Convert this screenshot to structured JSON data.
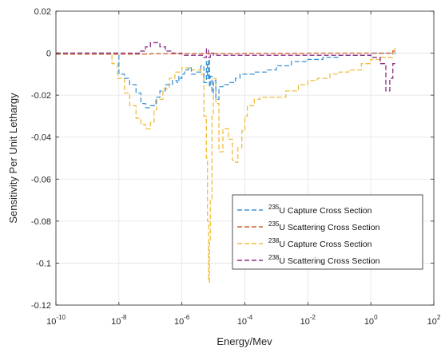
{
  "chart_data": {
    "type": "line",
    "title": "",
    "xlabel": "Energy/Mev",
    "ylabel": "Sensitivity Per Unit Lethargy",
    "xscale": "log",
    "xlim": [
      1e-10,
      100
    ],
    "ylim": [
      -0.12,
      0.02
    ],
    "grid": true,
    "legend_position": "lower-right",
    "x_ticks": [
      {
        "exp": "-10",
        "value": 1e-10
      },
      {
        "exp": "-8",
        "value": 1e-08
      },
      {
        "exp": "-6",
        "value": 1e-06
      },
      {
        "exp": "-4",
        "value": 0.0001
      },
      {
        "exp": "-2",
        "value": 0.01
      },
      {
        "exp": "0",
        "value": 1
      },
      {
        "exp": "2",
        "value": 100
      }
    ],
    "y_ticks": [
      {
        "label": "0.02",
        "value": 0.02
      },
      {
        "label": "0",
        "value": 0
      },
      {
        "label": "-0.02",
        "value": -0.02
      },
      {
        "label": "-0.04",
        "value": -0.04
      },
      {
        "label": "-0.06",
        "value": -0.06
      },
      {
        "label": "-0.08",
        "value": -0.08
      },
      {
        "label": "-0.1",
        "value": -0.1
      },
      {
        "label": "-0.12",
        "value": -0.12
      }
    ],
    "series": [
      {
        "sup": "235",
        "name_rest": "U Capture Cross Section",
        "color": "#3d93d6",
        "x": [
          1e-10,
          1e-08,
          1.5e-08,
          2.2e-08,
          3.5e-08,
          5e-08,
          7e-08,
          1e-07,
          1.5e-07,
          2e-07,
          3e-07,
          5e-07,
          7e-07,
          8e-07,
          9e-07,
          1e-06,
          1.2e-06,
          1.6e-06,
          2e-06,
          3e-06,
          4e-06,
          5e-06,
          6e-06,
          6.5e-06,
          7e-06,
          7.5e-06,
          8e-06,
          9e-06,
          1e-05,
          1.2e-05,
          1.5e-05,
          2e-05,
          3e-05,
          5e-05,
          7e-05,
          0.0001,
          0.0002,
          0.0005,
          0.001,
          0.003,
          0.01,
          0.03,
          0.1,
          0.3,
          1,
          2,
          5
        ],
        "y": [
          0,
          -0.01,
          -0.012,
          -0.015,
          -0.019,
          -0.024,
          -0.026,
          -0.025,
          -0.021,
          -0.018,
          -0.015,
          -0.013,
          -0.014,
          -0.011,
          -0.012,
          -0.01,
          -0.008,
          -0.007,
          -0.01,
          -0.009,
          -0.006,
          -0.014,
          -0.004,
          -0.012,
          -0.003,
          -0.016,
          -0.011,
          -0.019,
          -0.013,
          -0.022,
          -0.016,
          -0.015,
          -0.014,
          -0.012,
          -0.01,
          -0.01,
          -0.009,
          -0.008,
          -0.006,
          -0.004,
          -0.003,
          -0.002,
          -0.001,
          -0.001,
          0,
          0,
          0
        ]
      },
      {
        "sup": "235",
        "name_rest": "U Scattering Cross Section",
        "color": "#d4612a",
        "x": [
          1e-10,
          1e-08,
          1e-07,
          1e-06,
          5e-06,
          1e-05,
          0.0001,
          0.01,
          1,
          5
        ],
        "y": [
          -0.0005,
          -0.0005,
          -0.0003,
          -0.0002,
          -0.0002,
          -0.0002,
          -0.0001,
          0,
          0,
          0.001
        ]
      },
      {
        "sup": "238",
        "name_rest": "U Capture Cross Section",
        "color": "#f0bd3c",
        "x": [
          1e-10,
          6e-09,
          9e-09,
          1.5e-08,
          2.2e-08,
          3.5e-08,
          5e-08,
          7e-08,
          1e-07,
          1.3e-07,
          1.6e-07,
          2.5e-07,
          4e-07,
          6e-07,
          1e-06,
          2e-06,
          4e-06,
          5e-06,
          6e-06,
          6.5e-06,
          7e-06,
          7.5e-06,
          8e-06,
          9e-06,
          1e-05,
          1.2e-05,
          1.5e-05,
          2e-05,
          3e-05,
          4e-05,
          5e-05,
          6e-05,
          8e-05,
          0.0001,
          0.00012,
          0.0002,
          0.0003,
          0.0005,
          0.001,
          0.002,
          0.005,
          0.01,
          0.02,
          0.05,
          0.1,
          0.2,
          0.5,
          1,
          2,
          5
        ],
        "y": [
          0,
          -0.005,
          -0.012,
          -0.019,
          -0.025,
          -0.031,
          -0.034,
          -0.036,
          -0.033,
          -0.027,
          -0.022,
          -0.017,
          -0.012,
          -0.009,
          -0.007,
          -0.008,
          -0.01,
          -0.03,
          -0.05,
          -0.08,
          -0.109,
          -0.09,
          -0.07,
          -0.03,
          -0.012,
          -0.024,
          -0.047,
          -0.036,
          -0.041,
          -0.051,
          -0.052,
          -0.045,
          -0.037,
          -0.03,
          -0.025,
          -0.022,
          -0.021,
          -0.021,
          -0.021,
          -0.018,
          -0.015,
          -0.013,
          -0.012,
          -0.01,
          -0.009,
          -0.008,
          -0.005,
          -0.003,
          -0.002,
          0.002
        ]
      },
      {
        "sup": "238",
        "name_rest": "U Scattering Cross Section",
        "color": "#8a2e8a",
        "x": [
          1e-10,
          3e-08,
          5e-08,
          7e-08,
          1e-07,
          1.5e-07,
          2e-07,
          3e-07,
          5e-07,
          1e-06,
          3e-06,
          5e-06,
          6e-06,
          7e-06,
          8e-06,
          1e-05,
          0.0001,
          0.01,
          0.1,
          0.3,
          1,
          2,
          3,
          4,
          5
        ],
        "y": [
          0,
          0,
          0.001,
          0.003,
          0.005,
          0.005,
          0.003,
          0.001,
          0,
          -0.001,
          -0.001,
          -0.002,
          0.002,
          -0.002,
          0,
          -0.001,
          -0.001,
          -0.001,
          -0.001,
          -0.001,
          -0.002,
          -0.005,
          -0.018,
          -0.012,
          -0.005
        ]
      }
    ]
  }
}
